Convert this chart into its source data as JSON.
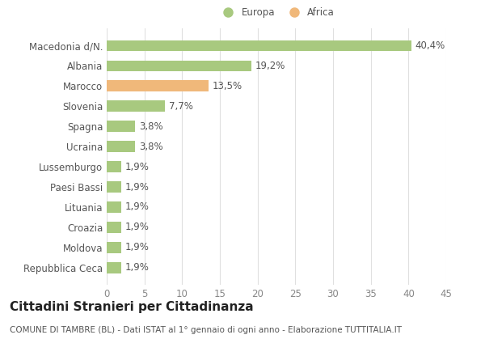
{
  "categories": [
    "Macedonia d/N.",
    "Albania",
    "Marocco",
    "Slovenia",
    "Spagna",
    "Ucraina",
    "Lussemburgo",
    "Paesi Bassi",
    "Lituania",
    "Croazia",
    "Moldova",
    "Repubblica Ceca"
  ],
  "values": [
    40.4,
    19.2,
    13.5,
    7.7,
    3.8,
    3.8,
    1.9,
    1.9,
    1.9,
    1.9,
    1.9,
    1.9
  ],
  "labels": [
    "40,4%",
    "19,2%",
    "13,5%",
    "7,7%",
    "3,8%",
    "3,8%",
    "1,9%",
    "1,9%",
    "1,9%",
    "1,9%",
    "1,9%",
    "1,9%"
  ],
  "colors": [
    "#a8c97f",
    "#a8c97f",
    "#f0b87a",
    "#a8c97f",
    "#a8c97f",
    "#a8c97f",
    "#a8c97f",
    "#a8c97f",
    "#a8c97f",
    "#a8c97f",
    "#a8c97f",
    "#a8c97f"
  ],
  "europa_color": "#a8c97f",
  "africa_color": "#f0b87a",
  "title": "Cittadini Stranieri per Cittadinanza",
  "subtitle": "COMUNE DI TAMBRE (BL) - Dati ISTAT al 1° gennaio di ogni anno - Elaborazione TUTTITALIA.IT",
  "xlim": [
    0,
    45
  ],
  "xticks": [
    0,
    5,
    10,
    15,
    20,
    25,
    30,
    35,
    40,
    45
  ],
  "background_color": "#ffffff",
  "grid_color": "#e0e0e0",
  "bar_height": 0.55,
  "label_fontsize": 8.5,
  "tick_fontsize": 8.5,
  "title_fontsize": 11,
  "subtitle_fontsize": 7.5
}
